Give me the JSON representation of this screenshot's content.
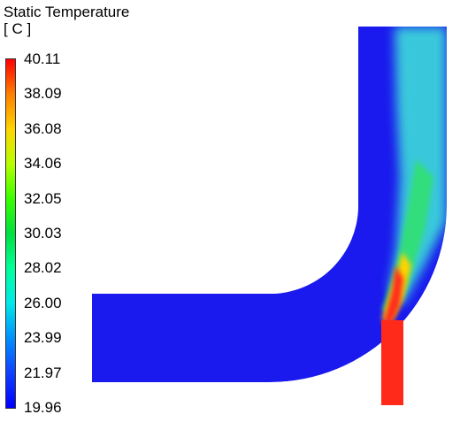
{
  "legend": {
    "title": "Static Temperature",
    "unit": "[ C ]",
    "ticks": [
      "40.11",
      "38.09",
      "36.08",
      "34.06",
      "32.05",
      "30.03",
      "28.02",
      "26.00",
      "23.99",
      "21.97",
      "19.96"
    ],
    "colormap": [
      "#ff0000",
      "#ff7f00",
      "#ffd400",
      "#b8ff00",
      "#3aff00",
      "#00e040",
      "#00ff9a",
      "#00e8e8",
      "#0090ff",
      "#1040ff",
      "#0000ff"
    ],
    "min": 19.96,
    "max": 40.11
  },
  "colors": {
    "cold_field": "#1a1aee",
    "hot_inlet": "#ff2a1a",
    "mixing_green": "#30e070",
    "mixing_cyan": "#40e8d8"
  }
}
